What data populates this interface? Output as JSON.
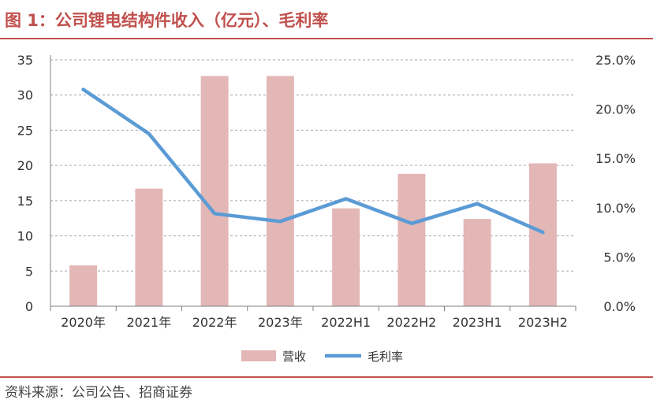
{
  "header": {
    "title": "图 1：公司锂电结构件收入（亿元）、毛利率"
  },
  "footer": {
    "source": "资料来源：公司公告、招商证券"
  },
  "colors": {
    "accent": "#c0504d",
    "bar": "#e2b7b6",
    "line": "#5b9bd5",
    "grid": "#a6a6a6"
  },
  "chart_data": {
    "type": "bar",
    "categories": [
      "2020年",
      "2021年",
      "2022年",
      "2023年",
      "2022H1",
      "2022H2",
      "2023H1",
      "2023H2"
    ],
    "series": [
      {
        "name": "营收",
        "type": "bar",
        "axis": "left",
        "values": [
          5.8,
          16.7,
          32.7,
          32.7,
          13.9,
          18.8,
          12.4,
          20.3
        ]
      },
      {
        "name": "毛利率",
        "type": "line",
        "axis": "right",
        "values": [
          0.22,
          0.175,
          0.094,
          0.086,
          0.109,
          0.084,
          0.104,
          0.075
        ]
      }
    ],
    "y_left": {
      "min": 0,
      "max": 35,
      "ticks": [
        "0",
        "5",
        "10",
        "15",
        "20",
        "25",
        "30",
        "35"
      ]
    },
    "y_right": {
      "min": 0,
      "max": 0.25,
      "ticks": [
        "0.0%",
        "5.0%",
        "10.0%",
        "15.0%",
        "20.0%",
        "25.0%"
      ]
    },
    "grid": true,
    "legend_position": "bottom-center"
  }
}
